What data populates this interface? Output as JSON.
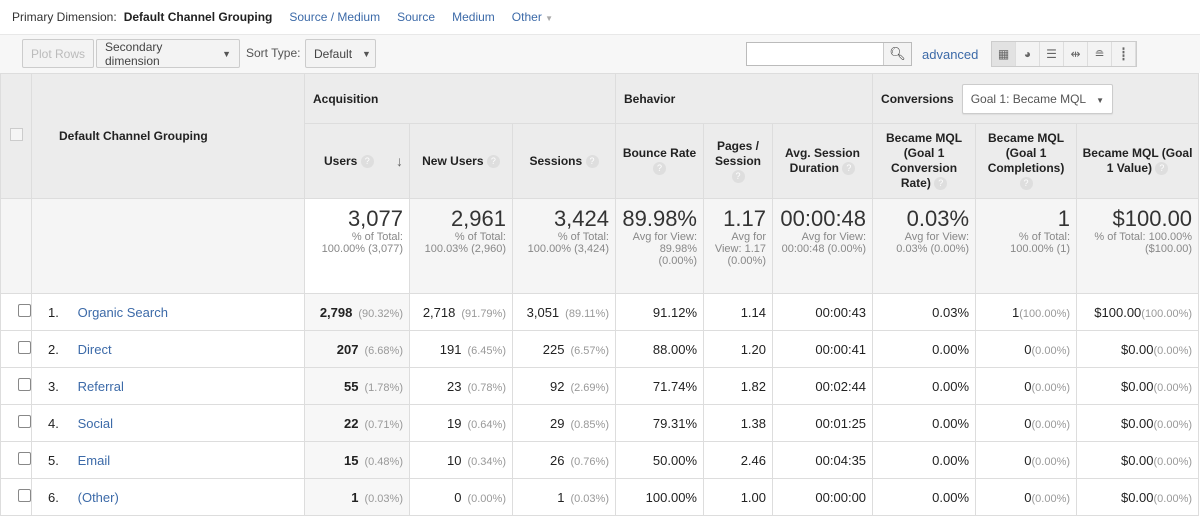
{
  "primary_dimension": {
    "label": "Primary Dimension:",
    "current": "Default Channel Grouping",
    "options": [
      "Source / Medium",
      "Source",
      "Medium"
    ],
    "other": "Other"
  },
  "toolbar": {
    "plot_rows": "Plot Rows",
    "secondary_dimension": "Secondary dimension",
    "sort_type_label": "Sort Type:",
    "sort_type_value": "Default",
    "search_value": "",
    "advanced": "advanced"
  },
  "table": {
    "dimension_header": "Default Channel Grouping",
    "groups": {
      "acquisition": "Acquisition",
      "behavior": "Behavior",
      "conversions": "Conversions",
      "goal_select": "Goal 1: Became MQL"
    },
    "columns": [
      "Users",
      "New Users",
      "Sessions",
      "Bounce Rate",
      "Pages / Session",
      "Avg. Session Duration",
      "Became MQL (Goal 1 Conversion Rate)",
      "Became MQL (Goal 1 Completions)",
      "Became MQL (Goal 1 Value)"
    ],
    "totals": [
      {
        "value": "3,077",
        "sub": "% of Total: 100.00% (3,077)"
      },
      {
        "value": "2,961",
        "sub": "% of Total: 100.03% (2,960)"
      },
      {
        "value": "3,424",
        "sub": "% of Total: 100.00% (3,424)"
      },
      {
        "value": "89.98%",
        "sub": "Avg for View: 89.98% (0.00%)"
      },
      {
        "value": "1.17",
        "sub": "Avg for View: 1.17 (0.00%)"
      },
      {
        "value": "00:00:48",
        "sub": "Avg for View: 00:00:48 (0.00%)"
      },
      {
        "value": "0.03%",
        "sub": "Avg for View: 0.03% (0.00%)"
      },
      {
        "value": "1",
        "sub": "% of Total: 100.00% (1)"
      },
      {
        "value": "$100.00",
        "sub": "% of Total: 100.00% ($100.00)"
      }
    ],
    "rows": [
      {
        "index": "1.",
        "name": "Organic Search",
        "cells": [
          [
            "2,798",
            "(90.32%)"
          ],
          [
            "2,718",
            "(91.79%)"
          ],
          [
            "3,051",
            "(89.11%)"
          ],
          [
            "91.12%"
          ],
          [
            "1.14"
          ],
          [
            "00:00:43"
          ],
          [
            "0.03%"
          ],
          [
            "1",
            "(100.00%)"
          ],
          [
            "$100.00",
            "(100.00%)"
          ]
        ]
      },
      {
        "index": "2.",
        "name": "Direct",
        "cells": [
          [
            "207",
            "(6.68%)"
          ],
          [
            "191",
            "(6.45%)"
          ],
          [
            "225",
            "(6.57%)"
          ],
          [
            "88.00%"
          ],
          [
            "1.20"
          ],
          [
            "00:00:41"
          ],
          [
            "0.00%"
          ],
          [
            "0",
            "(0.00%)"
          ],
          [
            "$0.00",
            "(0.00%)"
          ]
        ]
      },
      {
        "index": "3.",
        "name": "Referral",
        "cells": [
          [
            "55",
            "(1.78%)"
          ],
          [
            "23",
            "(0.78%)"
          ],
          [
            "92",
            "(2.69%)"
          ],
          [
            "71.74%"
          ],
          [
            "1.82"
          ],
          [
            "00:02:44"
          ],
          [
            "0.00%"
          ],
          [
            "0",
            "(0.00%)"
          ],
          [
            "$0.00",
            "(0.00%)"
          ]
        ]
      },
      {
        "index": "4.",
        "name": "Social",
        "cells": [
          [
            "22",
            "(0.71%)"
          ],
          [
            "19",
            "(0.64%)"
          ],
          [
            "29",
            "(0.85%)"
          ],
          [
            "79.31%"
          ],
          [
            "1.38"
          ],
          [
            "00:01:25"
          ],
          [
            "0.00%"
          ],
          [
            "0",
            "(0.00%)"
          ],
          [
            "$0.00",
            "(0.00%)"
          ]
        ]
      },
      {
        "index": "5.",
        "name": "Email",
        "cells": [
          [
            "15",
            "(0.48%)"
          ],
          [
            "10",
            "(0.34%)"
          ],
          [
            "26",
            "(0.76%)"
          ],
          [
            "50.00%"
          ],
          [
            "2.46"
          ],
          [
            "00:04:35"
          ],
          [
            "0.00%"
          ],
          [
            "0",
            "(0.00%)"
          ],
          [
            "$0.00",
            "(0.00%)"
          ]
        ]
      },
      {
        "index": "6.",
        "name": "(Other)",
        "cells": [
          [
            "1",
            "(0.03%)"
          ],
          [
            "0",
            "(0.00%)"
          ],
          [
            "1",
            "(0.03%)"
          ],
          [
            "100.00%"
          ],
          [
            "1.00"
          ],
          [
            "00:00:00"
          ],
          [
            "0.00%"
          ],
          [
            "0",
            "(0.00%)"
          ],
          [
            "$0.00",
            "(0.00%)"
          ]
        ]
      }
    ]
  }
}
